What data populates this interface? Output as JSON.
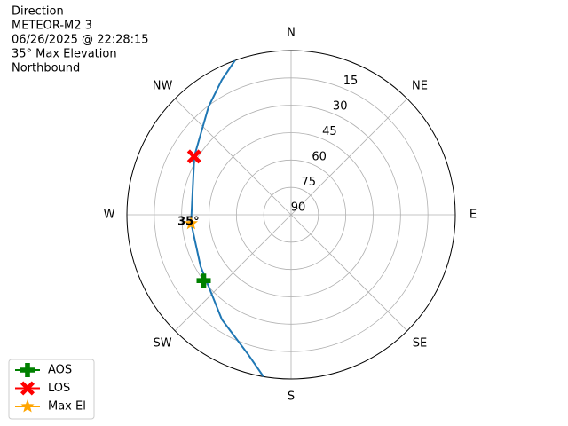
{
  "chart_data": {
    "type": "polar",
    "header_lines": [
      "Direction",
      "METEOR-M2 3",
      "06/26/2025 @ 22:28:15",
      "35° Max Elevation",
      "Northbound"
    ],
    "rlim": [
      90,
      0
    ],
    "rticks": [
      15,
      30,
      45,
      60,
      75,
      90
    ],
    "thetaticks": [
      {
        "value": 0,
        "label": "N"
      },
      {
        "value": 45,
        "label": "NE"
      },
      {
        "value": 90,
        "label": "E"
      },
      {
        "value": 135,
        "label": "SE"
      },
      {
        "value": 180,
        "label": "S"
      },
      {
        "value": 225,
        "label": "SW"
      },
      {
        "value": 270,
        "label": "W"
      },
      {
        "value": 315,
        "label": "NW"
      }
    ],
    "grid": true,
    "legend": "lower left",
    "series": [
      {
        "color": "#1f77b4",
        "x": [
          189.7,
          196.9,
          213.5,
          240.4,
          265.4,
          301.2,
          322.7,
          332.8,
          340
        ],
        "values": [
          0,
          9.7,
          21.2,
          32.9,
          35,
          28,
          15.4,
          6.9,
          0
        ]
      },
      {
        "name": "AOS",
        "color": "green",
        "marker": "plus",
        "x": [
          233
        ],
        "values": [
          30
        ]
      },
      {
        "name": "LOS",
        "color": "red",
        "marker": "x",
        "x": [
          301
        ],
        "values": [
          28
        ]
      },
      {
        "name": "Max El",
        "color": "orange",
        "marker": "star",
        "x": [
          265
        ],
        "values": [
          35
        ],
        "value_labels": [
          "35°"
        ]
      }
    ]
  }
}
